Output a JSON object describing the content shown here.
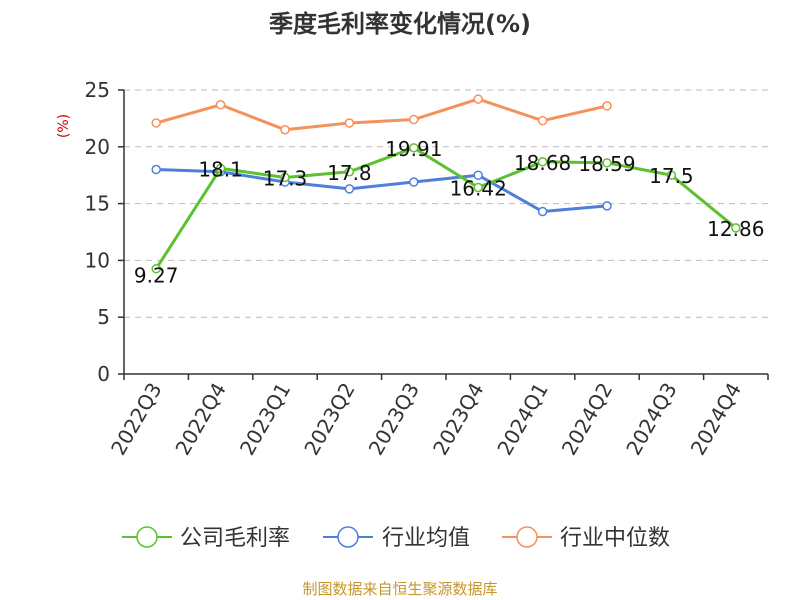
{
  "chart_data": {
    "type": "line",
    "title": "季度毛利率变化情况(%)",
    "ylabel": "(%)",
    "xlabel": "",
    "categories": [
      "2022Q3",
      "2022Q4",
      "2023Q1",
      "2023Q2",
      "2023Q3",
      "2023Q4",
      "2024Q1",
      "2024Q2",
      "2024Q3",
      "2024Q4"
    ],
    "ylim": [
      0,
      25
    ],
    "yticks": [
      0,
      5,
      10,
      15,
      20,
      25
    ],
    "grid": true,
    "legend_position": "bottom",
    "series": [
      {
        "name": "公司毛利率",
        "color": "#5cc12f",
        "values": [
          9.27,
          18.1,
          17.3,
          17.8,
          19.91,
          16.42,
          18.68,
          18.59,
          17.5,
          12.86
        ],
        "labels": [
          "9.27",
          "18.1",
          "17.3",
          "17.8",
          "19.91",
          "16.42",
          "18.68",
          "18.59",
          "17.5",
          "12.86"
        ]
      },
      {
        "name": "行业均值",
        "color": "#4e7fdb",
        "values": [
          18.0,
          17.8,
          16.9,
          16.3,
          16.9,
          17.5,
          14.3,
          14.8,
          null,
          null
        ]
      },
      {
        "name": "行业中位数",
        "color": "#f5915b",
        "values": [
          22.1,
          23.7,
          21.5,
          22.1,
          22.4,
          24.2,
          22.3,
          23.6,
          null,
          null
        ]
      }
    ],
    "source": "制图数据来自恒生聚源数据库"
  },
  "colors": {
    "axis": "#333333",
    "grid": "#bbbbbb",
    "ylabel": "#cc0000",
    "source": "#c8952b"
  }
}
